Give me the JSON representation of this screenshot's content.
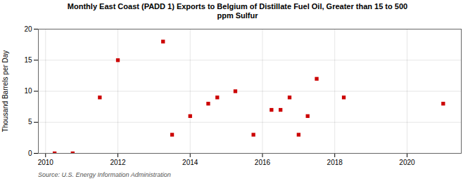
{
  "chart_data": {
    "type": "scatter",
    "title": "Monthly East Coast (PADD 1) Exports to Belgium of Distillate Fuel Oil, Greater than 15 to 500\nppm Sulfur",
    "ylabel": "Thousand Barrels per Day",
    "annotations": [
      "Source: U.S. Energy Information Administration"
    ],
    "x": [
      2010.25,
      2010.75,
      2011.5,
      2012.0,
      2013.25,
      2013.5,
      2014.0,
      2014.5,
      2014.75,
      2015.25,
      2015.75,
      2016.25,
      2016.5,
      2016.75,
      2017.0,
      2017.25,
      2017.5,
      2018.25,
      2021.0
    ],
    "values": [
      0,
      0,
      9,
      15,
      18,
      3,
      6,
      8,
      9,
      10,
      3,
      7,
      7,
      9,
      3,
      6,
      12,
      9,
      8
    ],
    "color": "#cc0000",
    "marker": "square",
    "xlim": [
      2009.8,
      2021.5
    ],
    "xticks": [
      2010,
      2012,
      2014,
      2016,
      2018,
      2020
    ],
    "ylim": [
      0,
      20
    ],
    "yticks": [
      0,
      5,
      10,
      15,
      20
    ],
    "grid": true
  }
}
